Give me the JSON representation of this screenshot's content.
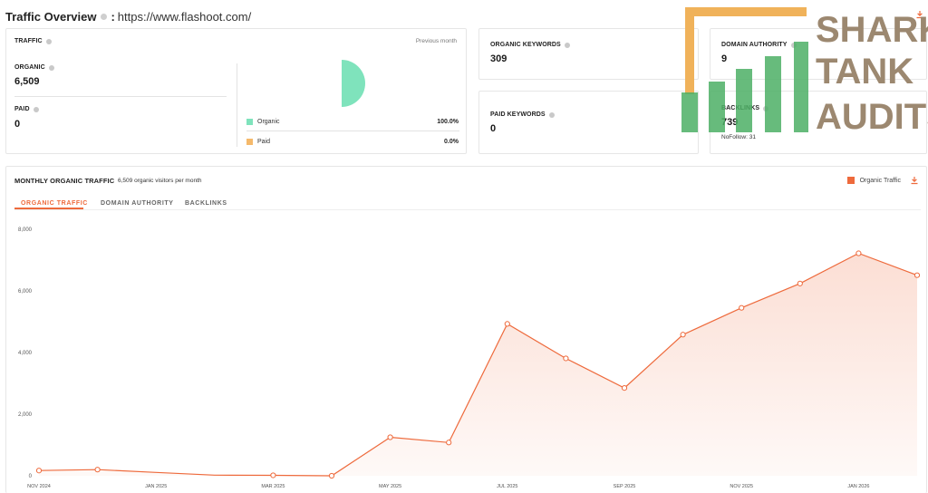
{
  "header": {
    "title": "Traffic Overview",
    "separator": ":",
    "url": "https://www.flashoot.com/"
  },
  "traffic": {
    "label": "TRAFFIC",
    "period": "Previous month",
    "organic_label": "ORGANIC",
    "organic_value": "6,509",
    "paid_label": "PAID",
    "paid_value": "0",
    "legend": [
      {
        "name": "Organic",
        "pct": "100.0%",
        "color": "#7fe3bc"
      },
      {
        "name": "Paid",
        "pct": "0.0%",
        "color": "#f5b96b"
      }
    ]
  },
  "organic_keywords": {
    "label": "ORGANIC KEYWORDS",
    "value": "309"
  },
  "paid_keywords": {
    "label": "PAID KEYWORDS",
    "value": "0"
  },
  "domain_authority": {
    "label": "DOMAIN AUTHORITY",
    "value": "9"
  },
  "backlinks": {
    "label": "BACKLINKS",
    "value": "739",
    "nofollow": "NoFollow: 31"
  },
  "monthly": {
    "title": "MONTHLY ORGANIC TRAFFIC",
    "subtitle": "6,509 organic visitors per month",
    "tabs": [
      "ORGANIC TRAFFIC",
      "DOMAIN AUTHORITY",
      "BACKLINKS"
    ],
    "active_tab": 0,
    "legend": "Organic Traffic"
  },
  "watermark": {
    "lines": [
      "SHARK",
      "TANK",
      "AUDITS"
    ],
    "text_color": "#9c8870",
    "bar_color": "#4caf65",
    "bracket_color": "#f0b25a"
  },
  "colors": {
    "accent": "#ee6a3c",
    "organic": "#7fe3bc",
    "paid": "#f5b96b"
  },
  "icons": {
    "download": "download-icon",
    "info": "info-icon"
  },
  "chart_data": {
    "type": "area",
    "series": [
      {
        "name": "Organic Traffic",
        "x": [
          "NOV 2024",
          "DEC 2024",
          "JAN 2025",
          "FEB 2025",
          "MAR 2025",
          "APR 2025",
          "MAY 2025",
          "JUN 2025",
          "JUL 2025",
          "AUG 2025",
          "SEP 2025",
          "OCT 2025",
          "NOV 2025",
          "DEC 2025",
          "JAN 2026",
          "FEB 2026"
        ],
        "values": [
          170,
          200,
          110,
          20,
          15,
          0,
          1250,
          1080,
          4930,
          3810,
          2850,
          4580,
          5450,
          6240,
          7220,
          6509
        ]
      }
    ],
    "x_ticks": [
      "NOV 2024",
      "JAN 2025",
      "MAR 2025",
      "MAY 2025",
      "JUL 2025",
      "SEP 2025",
      "NOV 2025",
      "JAN 2026"
    ],
    "y_ticks": [
      "0",
      "2,000",
      "4,000",
      "6,000",
      "8,000"
    ],
    "ylim": [
      0,
      8000
    ],
    "grid": false,
    "legend": "top-right",
    "marker_points_index": [
      0,
      1,
      4,
      5,
      6,
      7,
      8,
      9,
      10,
      11,
      12,
      13,
      14,
      15
    ]
  }
}
